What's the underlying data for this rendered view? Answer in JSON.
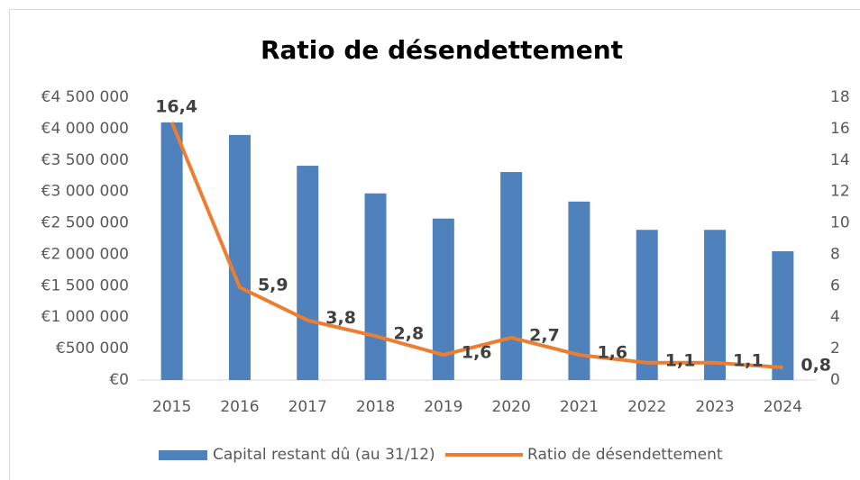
{
  "chart_data": {
    "type": "bar_line",
    "title": "Ratio de désendettement",
    "categories": [
      "2015",
      "2016",
      "2017",
      "2018",
      "2019",
      "2020",
      "2021",
      "2022",
      "2023",
      "2024"
    ],
    "series": [
      {
        "name": "Capital restant dû (au 31/12)",
        "type": "bar",
        "color": "#4f81bd",
        "axis": "y",
        "values": [
          4100000,
          3900000,
          3410000,
          2970000,
          2570000,
          3310000,
          2840000,
          2390000,
          2390000,
          2050000
        ]
      },
      {
        "name": "Ratio de désendettement",
        "type": "line",
        "color": "#ed7d31",
        "axis": "y2",
        "values": [
          16.4,
          5.9,
          3.8,
          2.8,
          1.6,
          2.7,
          1.6,
          1.1,
          1.1,
          0.8
        ],
        "value_labels": [
          "16,4",
          "5,9",
          "3,8",
          "2,8",
          "1,6",
          "2,7",
          "1,6",
          "1,1",
          "1,1",
          "0,8"
        ]
      }
    ],
    "ylim": [
      0,
      4500000
    ],
    "yticks": [
      {
        "value": 0,
        "label": "€0"
      },
      {
        "value": 500000,
        "label": "€500 000"
      },
      {
        "value": 1000000,
        "label": "€1 000 000"
      },
      {
        "value": 1500000,
        "label": "€1 500 000"
      },
      {
        "value": 2000000,
        "label": "€2 000 000"
      },
      {
        "value": 2500000,
        "label": "€2 500 000"
      },
      {
        "value": 3000000,
        "label": "€3 000 000"
      },
      {
        "value": 3500000,
        "label": "€3 500 000"
      },
      {
        "value": 4000000,
        "label": "€4 000 000"
      },
      {
        "value": 4500000,
        "label": "€4 500 000"
      }
    ],
    "y2lim": [
      0,
      18
    ],
    "y2ticks": [
      0,
      2,
      4,
      6,
      8,
      10,
      12,
      14,
      16,
      18
    ],
    "legend": "bottom"
  }
}
